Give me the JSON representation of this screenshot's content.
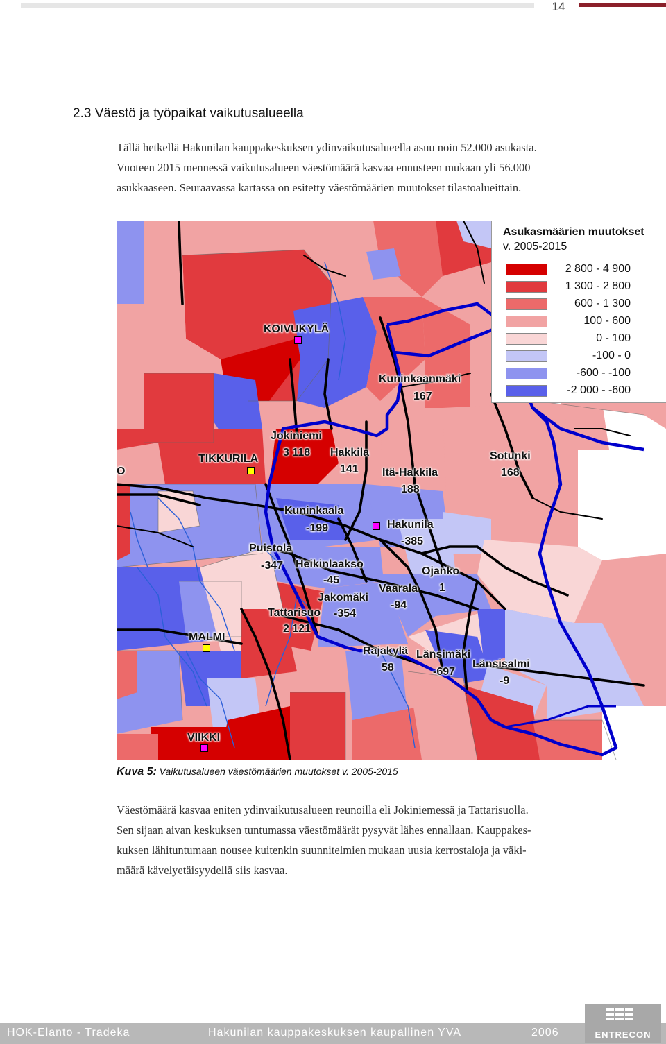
{
  "header": {
    "page_number": "14"
  },
  "section": {
    "heading": "2.3 Väestö ja työpaikat vaikutusalueella"
  },
  "intro": {
    "line1": "Tällä hetkellä Hakunilan kauppakeskuksen ydinvaikutusalueella asuu noin 52.000 asukasta.",
    "line2": "Vuoteen 2015 mennessä vaikutusalueen väestömäärä kasvaa ennusteen mukaan yli 56.000",
    "line3": "asukkaaseen. Seuraavassa kartassa on esitetty väestömäärien muutokset tilastoalueittain."
  },
  "legend": {
    "title": "Asukasmäärien muutokset",
    "subtitle": "v. 2005-2015",
    "items": [
      {
        "label": "2 800 - 4 900",
        "color": "#d50000"
      },
      {
        "label": "1 300 - 2 800",
        "color": "#e13a3e"
      },
      {
        "label": "600 - 1 300",
        "color": "#ec6a6a"
      },
      {
        "label": "100 -   600",
        "color": "#f1a3a3"
      },
      {
        "label": "0 -   100",
        "color": "#f9d6d6"
      },
      {
        "label": "-100 -     0",
        "color": "#c3c6f6"
      },
      {
        "label": "-600 -  -100",
        "color": "#8e93ef"
      },
      {
        "label": "-2 000 -  -600",
        "color": "#5960ea"
      }
    ]
  },
  "map_labels": {
    "koivukyla": "KOIVUKYLÄ",
    "kuninkaanmaki": "Kuninkaanmäki",
    "kuninkaanmaki_value": "167",
    "jokiniemi": "Jokiniemi",
    "jokiniemi_value": "3 118",
    "hakkila": "Hakkila",
    "hakkila_value": "141",
    "tikkurila": "TIKKURILA",
    "ita_hakkila": "Itä-Hakkila",
    "ita_hakkila_value": "188",
    "sotunki": "Sotunki",
    "sotunki_value": "168",
    "edge_o": "O",
    "kuninkaala": "Kuninkaala",
    "kuninkaala_value": "-199",
    "hakunila": "Hakunila",
    "hakunila_value": "-385",
    "puistola": "Puistola",
    "puistola_value": "-347",
    "heikinlaakso": "Heikinlaakso",
    "heikinlaakso_value": "-45",
    "ojanko": "Ojanko",
    "ojanko_value": "1",
    "vaarala": "Vaarala",
    "vaarala_value": "-94",
    "jakomaki": "Jakomäki",
    "jakomaki_value": "-354",
    "tattarisuo": "Tattarisuo",
    "tattarisuo_value": "2 121",
    "malmi": "MALMI",
    "rajakyla": "Rajakylä",
    "rajakyla_value": "58",
    "lansimaki": "Länsimäki",
    "lansimaki_value": "-697",
    "lansisalmi": "Länsisalmi",
    "lansisalmi_value": "-9",
    "viikki": "VIIKKI"
  },
  "marker_colors": {
    "pink": "#ff00ff",
    "yellow": "#ffff00"
  },
  "caption": {
    "prefix": "Kuva 5:",
    "text": " Vaikutusalueen väestömäärien muutokset v. 2005-2015"
  },
  "body": {
    "line1": "Väestömäärä kasvaa eniten ydinvaikutusalueen reunoilla eli Jokiniemessä ja Tattarisuolla.",
    "line2": "Sen sijaan aivan keskuksen tuntumassa väestömäärät pysyvät lähes ennallaan. Kauppakes-",
    "line3": "kuksen lähituntumaan nousee kuitenkin suunnitelmien mukaan uusia kerrostaloja ja väki-",
    "line4": "määrä kävelyetäisyydellä siis kasvaa."
  },
  "footer": {
    "left": "HOK-Elanto - Tradeka",
    "center": "Hakunilan kauppakeskuksen kaupallinen YVA",
    "year": "2006",
    "logo": "ENTRECON"
  }
}
